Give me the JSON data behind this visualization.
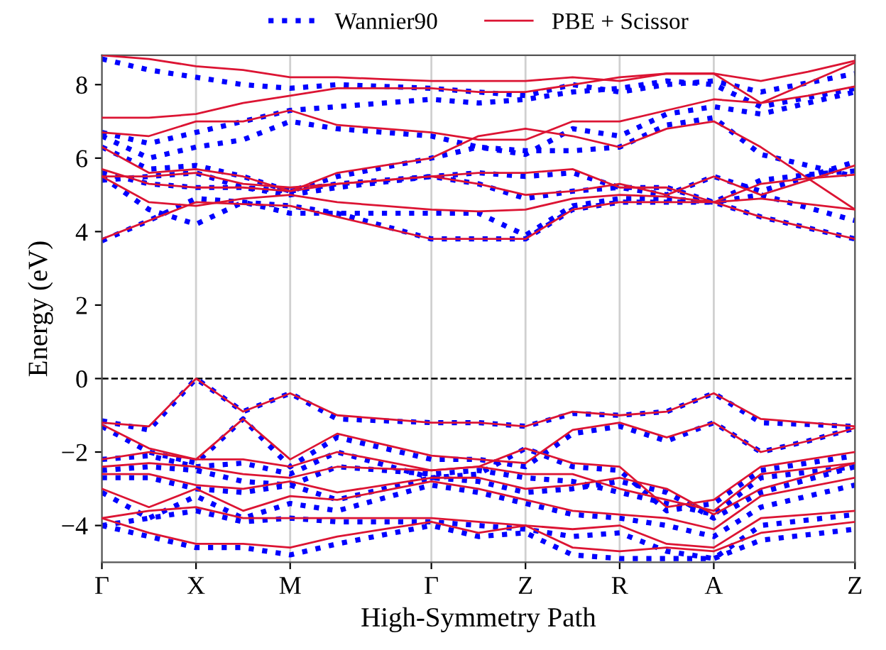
{
  "chart_data": {
    "type": "line",
    "xlabel": "High-Symmetry Path",
    "ylabel": "Energy (eV)",
    "categories": [
      "Γ",
      null,
      "X",
      null,
      "M",
      null,
      null,
      "Γ",
      null,
      "Z",
      null,
      "R",
      null,
      "A",
      null,
      null,
      "Z"
    ],
    "ylim": [
      -5,
      8.8
    ],
    "yticks": [
      {
        "value": -4,
        "label": "−4"
      },
      {
        "value": -2,
        "label": "−2"
      },
      0,
      2,
      4,
      6,
      8
    ],
    "grid": "x",
    "legend": "top",
    "ref_lines": [
      {
        "axis": "y",
        "value": 0,
        "color": "#000000",
        "line_style": "dashed"
      }
    ],
    "series": [
      {
        "name": "Wannier90",
        "color": "#0000ff",
        "line_style": "dotted",
        "values": [
          -1.15,
          -1.4,
          0,
          -0.9,
          -0.4,
          -1.1,
          -1.15,
          -1.2,
          -1.2,
          -1.3,
          -0.95,
          -1.0,
          -0.9,
          -0.4,
          -1.2,
          -1.25,
          -1.3
        ]
      },
      {
        "color": "#0000ff",
        "line_style": "dotted",
        "values": [
          -1.3,
          -2.0,
          -2.3,
          -1.1,
          -2.4,
          -1.6,
          -1.9,
          -2.2,
          -2.2,
          -2.4,
          -1.5,
          -1.3,
          -1.7,
          -1.2,
          -2.0,
          -1.7,
          -1.35
        ]
      },
      {
        "color": "#0000ff",
        "line_style": "dotted",
        "values": [
          -2.2,
          -2.1,
          -2.4,
          -2.3,
          -2.6,
          -2.0,
          -2.35,
          -2.7,
          -2.6,
          -1.9,
          -2.4,
          -2.5,
          -3.6,
          -3.4,
          -2.5,
          -2.3,
          -2.1
        ]
      },
      {
        "color": "#0000ff",
        "line_style": "dotted",
        "values": [
          -2.5,
          -2.4,
          -2.5,
          -2.8,
          -2.9,
          -2.4,
          -2.5,
          -2.6,
          -2.5,
          -2.7,
          -2.8,
          -3.1,
          -3.4,
          -3.7,
          -2.7,
          -2.55,
          -2.4
        ]
      },
      {
        "color": "#0000ff",
        "line_style": "dotted",
        "values": [
          -2.7,
          -2.7,
          -3.0,
          -3.1,
          -2.9,
          -3.3,
          -3.0,
          -2.7,
          -2.8,
          -3.1,
          -3.0,
          -2.8,
          -3.1,
          -3.8,
          -3.1,
          -2.75,
          -2.4
        ]
      },
      {
        "color": "#0000ff",
        "line_style": "dotted",
        "values": [
          -3.1,
          -3.8,
          -3.2,
          -3.8,
          -3.4,
          -3.6,
          -3.25,
          -2.9,
          -3.1,
          -3.4,
          -3.7,
          -3.8,
          -4.0,
          -4.3,
          -3.5,
          -3.2,
          -2.9
        ]
      },
      {
        "color": "#0000ff",
        "line_style": "dotted",
        "values": [
          -4.0,
          -3.8,
          -3.6,
          -3.9,
          -3.8,
          -3.9,
          -3.9,
          -3.9,
          -4.0,
          -4.1,
          -4.3,
          -4.2,
          -4.7,
          -4.9,
          -4.0,
          -3.85,
          -3.7
        ]
      },
      {
        "color": "#0000ff",
        "line_style": "dotted",
        "values": [
          -4.0,
          -4.3,
          -4.6,
          -4.6,
          -4.8,
          -4.5,
          -4.25,
          -4.0,
          -4.3,
          -4.2,
          -4.8,
          -4.9,
          -4.9,
          -4.9,
          -4.4,
          -4.25,
          -4.1
        ]
      },
      {
        "color": "#0000ff",
        "line_style": "dotted",
        "values": [
          3.75,
          4.3,
          4.9,
          4.8,
          4.7,
          4.5,
          4.15,
          3.8,
          3.8,
          3.8,
          4.6,
          4.8,
          4.8,
          4.8,
          4.4,
          4.1,
          3.8
        ]
      },
      {
        "color": "#0000ff",
        "line_style": "dotted",
        "values": [
          5.5,
          4.6,
          4.2,
          4.8,
          4.5,
          4.5,
          4.5,
          4.5,
          4.5,
          3.9,
          4.7,
          4.9,
          4.9,
          4.8,
          5.0,
          4.65,
          4.3
        ]
      },
      {
        "color": "#0000ff",
        "line_style": "dotted",
        "values": [
          5.4,
          5.5,
          5.6,
          5.2,
          5.0,
          5.2,
          5.35,
          5.5,
          5.3,
          4.9,
          5.1,
          5.2,
          5.0,
          5.5,
          5.1,
          5.5,
          5.9
        ]
      },
      {
        "color": "#0000ff",
        "line_style": "dotted",
        "values": [
          5.6,
          5.3,
          5.2,
          5.2,
          5.1,
          5.3,
          5.4,
          5.5,
          5.6,
          5.5,
          5.6,
          5.2,
          5.2,
          4.8,
          5.4,
          5.55,
          5.65
        ]
      },
      {
        "color": "#0000ff",
        "line_style": "dotted",
        "values": [
          6.3,
          5.7,
          5.8,
          5.5,
          5.1,
          5.5,
          5.75,
          6.0,
          6.3,
          6.2,
          6.2,
          6.3,
          6.9,
          7.1,
          6.1,
          5.8,
          5.5
        ]
      },
      {
        "color": "#0000ff",
        "line_style": "dotted",
        "values": [
          6.6,
          6.0,
          6.3,
          6.5,
          7.0,
          6.8,
          6.7,
          6.6,
          6.3,
          6.1,
          6.8,
          6.6,
          7.2,
          7.4,
          7.2,
          7.5,
          7.8
        ]
      },
      {
        "color": "#0000ff",
        "line_style": "dotted",
        "values": [
          6.7,
          6.4,
          6.7,
          7.0,
          7.3,
          7.4,
          7.5,
          7.6,
          7.5,
          7.6,
          7.8,
          7.9,
          8.1,
          8.0,
          7.4,
          7.65,
          7.9
        ]
      },
      {
        "color": "#0000ff",
        "line_style": "dotted",
        "values": [
          8.7,
          8.4,
          8.2,
          8.0,
          7.9,
          8.0,
          7.95,
          7.9,
          7.8,
          7.7,
          8.0,
          7.8,
          8.0,
          8.1,
          7.8,
          8.05,
          8.3
        ]
      },
      {
        "name": "PBE + Scissor",
        "color": "#dc1433",
        "line_style": "solid",
        "values": [
          -1.2,
          -1.3,
          0,
          -0.9,
          -0.4,
          -1.0,
          -1.1,
          -1.2,
          -1.2,
          -1.3,
          -0.9,
          -1.0,
          -0.9,
          -0.4,
          -1.1,
          -1.2,
          -1.3
        ]
      },
      {
        "color": "#dc1433",
        "line_style": "solid",
        "values": [
          -1.25,
          -1.9,
          -2.2,
          -1.1,
          -2.2,
          -1.5,
          -1.8,
          -2.1,
          -2.2,
          -2.3,
          -1.4,
          -1.2,
          -1.6,
          -1.2,
          -2.0,
          -1.7,
          -1.35
        ]
      },
      {
        "color": "#dc1433",
        "line_style": "solid",
        "values": [
          -2.2,
          -2.0,
          -2.2,
          -2.2,
          -2.4,
          -2.0,
          -2.25,
          -2.5,
          -2.4,
          -1.9,
          -2.3,
          -2.4,
          -3.5,
          -3.3,
          -2.4,
          -2.2,
          -2.0
        ]
      },
      {
        "color": "#dc1433",
        "line_style": "solid",
        "values": [
          -2.4,
          -2.3,
          -2.4,
          -2.6,
          -2.7,
          -2.4,
          -2.45,
          -2.5,
          -2.4,
          -2.6,
          -2.6,
          -3.0,
          -3.3,
          -3.6,
          -2.6,
          -2.45,
          -2.3
        ]
      },
      {
        "color": "#dc1433",
        "line_style": "solid",
        "values": [
          -2.6,
          -2.6,
          -2.9,
          -3.0,
          -2.8,
          -3.1,
          -2.9,
          -2.7,
          -2.7,
          -3.0,
          -2.9,
          -2.7,
          -3.0,
          -3.7,
          -3.0,
          -2.65,
          -2.3
        ]
      },
      {
        "color": "#dc1433",
        "line_style": "solid",
        "values": [
          -3.0,
          -3.5,
          -3.0,
          -3.6,
          -3.2,
          -3.3,
          -3.05,
          -2.8,
          -3.0,
          -3.3,
          -3.6,
          -3.7,
          -3.8,
          -4.1,
          -3.2,
          -2.95,
          -2.7
        ]
      },
      {
        "color": "#dc1433",
        "line_style": "solid",
        "values": [
          -3.8,
          -3.6,
          -3.5,
          -3.8,
          -3.8,
          -3.8,
          -3.8,
          -3.8,
          -3.9,
          -4.0,
          -4.1,
          -4.0,
          -4.5,
          -4.6,
          -3.8,
          -3.7,
          -3.6
        ]
      },
      {
        "color": "#dc1433",
        "line_style": "solid",
        "values": [
          -3.8,
          -4.2,
          -4.5,
          -4.5,
          -4.6,
          -4.3,
          -4.1,
          -3.9,
          -4.2,
          -4.0,
          -4.6,
          -4.7,
          -4.6,
          -4.7,
          -4.2,
          -4.05,
          -3.9
        ]
      },
      {
        "color": "#dc1433",
        "line_style": "solid",
        "values": [
          3.8,
          4.3,
          4.8,
          4.75,
          4.7,
          4.4,
          4.1,
          3.8,
          3.8,
          3.8,
          4.6,
          4.8,
          4.8,
          4.8,
          4.4,
          4.1,
          3.8
        ]
      },
      {
        "color": "#dc1433",
        "line_style": "solid",
        "values": [
          5.5,
          4.8,
          4.7,
          4.9,
          5.0,
          4.8,
          4.7,
          4.6,
          4.55,
          4.6,
          4.9,
          5.0,
          4.95,
          4.8,
          4.9,
          4.75,
          4.6
        ]
      },
      {
        "color": "#dc1433",
        "line_style": "solid",
        "values": [
          5.5,
          5.5,
          5.6,
          5.3,
          5.2,
          5.3,
          5.4,
          5.5,
          5.3,
          5.0,
          5.1,
          5.3,
          5.0,
          5.5,
          5.0,
          5.4,
          5.8
        ]
      },
      {
        "color": "#dc1433",
        "line_style": "solid",
        "values": [
          5.7,
          5.3,
          5.2,
          5.2,
          5.1,
          5.3,
          5.4,
          5.5,
          5.6,
          5.6,
          5.7,
          5.2,
          5.2,
          4.8,
          5.3,
          5.45,
          5.55
        ]
      },
      {
        "color": "#dc1433",
        "line_style": "solid",
        "values": [
          6.3,
          5.6,
          5.7,
          5.5,
          5.1,
          5.6,
          5.8,
          6.0,
          6.6,
          6.8,
          6.6,
          6.3,
          6.8,
          7.0,
          6.3,
          5.45,
          4.6
        ]
      },
      {
        "color": "#dc1433",
        "line_style": "solid",
        "values": [
          6.7,
          6.6,
          7.0,
          7.0,
          7.3,
          6.9,
          6.8,
          6.7,
          6.5,
          6.5,
          7.0,
          7.0,
          7.3,
          7.6,
          7.5,
          7.7,
          7.95
        ]
      },
      {
        "color": "#dc1433",
        "line_style": "solid",
        "values": [
          7.1,
          7.1,
          7.2,
          7.5,
          7.7,
          7.9,
          7.9,
          7.9,
          7.8,
          7.8,
          8.0,
          8.2,
          8.3,
          8.3,
          7.5,
          8.05,
          8.6
        ]
      },
      {
        "color": "#dc1433",
        "line_style": "solid",
        "values": [
          8.8,
          8.7,
          8.5,
          8.4,
          8.2,
          8.2,
          8.15,
          8.1,
          8.1,
          8.1,
          8.2,
          8.1,
          8.3,
          8.3,
          8.1,
          8.35,
          8.65
        ]
      }
    ]
  }
}
